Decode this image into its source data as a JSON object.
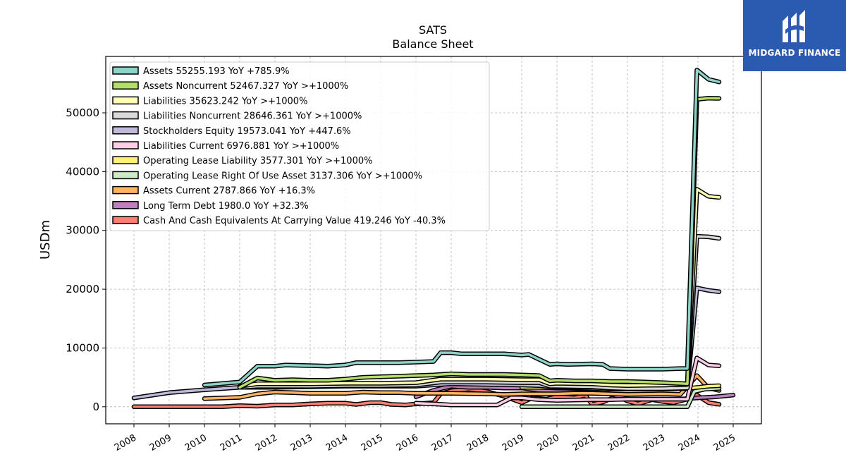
{
  "logo": {
    "text": "MIDGARD FINANCE",
    "color": "#2a5bb0"
  },
  "chart_data": {
    "type": "line",
    "title": "SATS",
    "subtitle": "Balance  Sheet",
    "ylabel": "USDm",
    "xlabel": "",
    "xlim": [
      2007.2,
      2025.8
    ],
    "ylim": [
      -2900,
      59600
    ],
    "yticks": [
      0,
      10000,
      20000,
      30000,
      40000,
      50000
    ],
    "xticks": [
      2008,
      2009,
      2010,
      2011,
      2012,
      2013,
      2014,
      2015,
      2016,
      2017,
      2018,
      2019,
      2020,
      2021,
      2022,
      2023,
      2024,
      2025
    ],
    "grid": true,
    "legend_position": "top-left",
    "series": [
      {
        "name": "Assets  55255.193 YoY +785.9%",
        "color": "#8dd3c7",
        "points": [
          [
            2010,
            3700
          ],
          [
            2011,
            4200
          ],
          [
            2011.5,
            6900
          ],
          [
            2012,
            6900
          ],
          [
            2012.3,
            7100
          ],
          [
            2013,
            7000
          ],
          [
            2013.5,
            6900
          ],
          [
            2014,
            7100
          ],
          [
            2014.3,
            7500
          ],
          [
            2015,
            7500
          ],
          [
            2015.5,
            7500
          ],
          [
            2016,
            7600
          ],
          [
            2016.5,
            7700
          ],
          [
            2016.7,
            9200
          ],
          [
            2017,
            9200
          ],
          [
            2017.3,
            9000
          ],
          [
            2018,
            9000
          ],
          [
            2018.5,
            9000
          ],
          [
            2019,
            8800
          ],
          [
            2019.2,
            8900
          ],
          [
            2019.8,
            7200
          ],
          [
            2020,
            7300
          ],
          [
            2020.3,
            7200
          ],
          [
            2021,
            7300
          ],
          [
            2021.3,
            7200
          ],
          [
            2021.5,
            6500
          ],
          [
            2022,
            6400
          ],
          [
            2022.5,
            6400
          ],
          [
            2023,
            6400
          ],
          [
            2023.5,
            6500
          ],
          [
            2023.7,
            6500
          ],
          [
            2023.97,
            57300
          ],
          [
            2024.3,
            55700
          ],
          [
            2024.6,
            55255
          ]
        ]
      },
      {
        "name": "Assets Noncurrent  52467.327 YoY >+1000%",
        "color": "#b3de69",
        "points": [
          [
            2011,
            3300
          ],
          [
            2011.5,
            4900
          ],
          [
            2012,
            4500
          ],
          [
            2012.5,
            4600
          ],
          [
            2013,
            4500
          ],
          [
            2013.5,
            4500
          ],
          [
            2014,
            4700
          ],
          [
            2014.5,
            5000
          ],
          [
            2015,
            5100
          ],
          [
            2015.5,
            5200
          ],
          [
            2016,
            5300
          ],
          [
            2016.5,
            5400
          ],
          [
            2017,
            5600
          ],
          [
            2017.5,
            5500
          ],
          [
            2018,
            5500
          ],
          [
            2018.5,
            5500
          ],
          [
            2019,
            5400
          ],
          [
            2019.5,
            5300
          ],
          [
            2019.8,
            4400
          ],
          [
            2020,
            4500
          ],
          [
            2020.5,
            4400
          ],
          [
            2021,
            4400
          ],
          [
            2021.5,
            4300
          ],
          [
            2022,
            4300
          ],
          [
            2022.5,
            4200
          ],
          [
            2023,
            4100
          ],
          [
            2023.7,
            3900
          ],
          [
            2023.97,
            52300
          ],
          [
            2024.3,
            52500
          ],
          [
            2024.6,
            52467
          ]
        ]
      },
      {
        "name": "Liabilities  35623.242 YoY >+1000%",
        "color": "#ffffb3",
        "points": [
          [
            2011,
            3500
          ],
          [
            2011.5,
            3900
          ],
          [
            2012,
            3900
          ],
          [
            2013,
            3900
          ],
          [
            2014,
            4000
          ],
          [
            2015,
            4000
          ],
          [
            2016,
            4100
          ],
          [
            2016.7,
            4700
          ],
          [
            2017,
            4700
          ],
          [
            2018,
            4700
          ],
          [
            2019,
            4600
          ],
          [
            2019.5,
            4600
          ],
          [
            2019.8,
            3900
          ],
          [
            2020,
            4000
          ],
          [
            2021,
            3900
          ],
          [
            2021.5,
            3700
          ],
          [
            2022,
            3600
          ],
          [
            2023,
            3700
          ],
          [
            2023.7,
            3800
          ],
          [
            2023.97,
            37000
          ],
          [
            2024.3,
            35800
          ],
          [
            2024.6,
            35623
          ]
        ]
      },
      {
        "name": "Liabilities Noncurrent  28646.361 YoY >+1000%",
        "color": "#d9d9d9",
        "points": [
          [
            2011,
            3300
          ],
          [
            2011.5,
            3500
          ],
          [
            2012,
            3500
          ],
          [
            2013,
            3500
          ],
          [
            2014,
            3600
          ],
          [
            2015,
            3600
          ],
          [
            2016,
            3700
          ],
          [
            2016.7,
            4200
          ],
          [
            2017,
            4200
          ],
          [
            2018,
            4200
          ],
          [
            2019,
            4100
          ],
          [
            2019.5,
            4100
          ],
          [
            2019.8,
            3500
          ],
          [
            2020,
            3500
          ],
          [
            2021,
            3400
          ],
          [
            2021.5,
            3200
          ],
          [
            2022,
            3100
          ],
          [
            2023,
            3100
          ],
          [
            2023.7,
            3200
          ],
          [
            2023.97,
            29000
          ],
          [
            2024.3,
            28900
          ],
          [
            2024.6,
            28646
          ]
        ]
      },
      {
        "name": "Stockholders Equity  19573.041 YoY +447.6%",
        "color": "#bebada",
        "points": [
          [
            2008,
            1500
          ],
          [
            2009,
            2400
          ],
          [
            2010,
            2900
          ],
          [
            2011,
            3300
          ],
          [
            2012,
            3300
          ],
          [
            2013,
            3400
          ],
          [
            2014,
            3500
          ],
          [
            2015,
            3500
          ],
          [
            2016,
            3500
          ],
          [
            2016.7,
            3800
          ],
          [
            2017,
            3900
          ],
          [
            2018,
            3800
          ],
          [
            2019,
            3700
          ],
          [
            2019.5,
            3600
          ],
          [
            2020,
            3300
          ],
          [
            2021,
            3300
          ],
          [
            2021.5,
            3200
          ],
          [
            2022,
            3200
          ],
          [
            2023,
            3300
          ],
          [
            2023.7,
            3300
          ],
          [
            2023.97,
            20200
          ],
          [
            2024.3,
            19800
          ],
          [
            2024.6,
            19573
          ]
        ]
      },
      {
        "name": "Liabilities Current  6976.881 YoY >+1000%",
        "color": "#fccde5",
        "points": [
          [
            2016,
            600
          ],
          [
            2016.5,
            500
          ],
          [
            2017,
            300
          ],
          [
            2017.5,
            300
          ],
          [
            2018,
            300
          ],
          [
            2018.3,
            300
          ],
          [
            2018.7,
            1500
          ],
          [
            2019,
            1500
          ],
          [
            2019.5,
            1200
          ],
          [
            2020,
            1100
          ],
          [
            2021,
            1200
          ],
          [
            2021.5,
            1200
          ],
          [
            2022,
            1300
          ],
          [
            2023,
            1300
          ],
          [
            2023.7,
            1300
          ],
          [
            2023.97,
            8300
          ],
          [
            2024.3,
            7100
          ],
          [
            2024.6,
            6977
          ]
        ]
      },
      {
        "name": "Operating Lease Liability  3577.301 YoY >+1000%",
        "color": "#fff176",
        "points": [
          [
            2019,
            3300
          ],
          [
            2019.5,
            3300
          ],
          [
            2020,
            3200
          ],
          [
            2021,
            3100
          ],
          [
            2021.5,
            3000
          ],
          [
            2022,
            3000
          ],
          [
            2023,
            3000
          ],
          [
            2023.7,
            3100
          ],
          [
            2024,
            3300
          ],
          [
            2024.3,
            3500
          ],
          [
            2024.6,
            3577
          ]
        ]
      },
      {
        "name": "Operating Lease Right Of Use Asset  3137.306 YoY >+1000%",
        "color": "#ccebc5",
        "points": [
          [
            2019,
            0
          ],
          [
            2019.5,
            0
          ],
          [
            2020,
            0
          ],
          [
            2021,
            0
          ],
          [
            2021.5,
            0
          ],
          [
            2022,
            0
          ],
          [
            2023,
            0
          ],
          [
            2023.7,
            0
          ],
          [
            2023.9,
            2600
          ],
          [
            2024.2,
            3000
          ],
          [
            2024.6,
            3137
          ]
        ]
      },
      {
        "name": "Assets Current  2787.866 YoY +16.3%",
        "color": "#fdb462",
        "points": [
          [
            2010,
            1400
          ],
          [
            2011,
            1600
          ],
          [
            2011.5,
            2200
          ],
          [
            2012,
            2500
          ],
          [
            2012.5,
            2400
          ],
          [
            2013,
            2300
          ],
          [
            2014,
            2300
          ],
          [
            2014.5,
            2500
          ],
          [
            2015,
            2400
          ],
          [
            2015.5,
            2400
          ],
          [
            2016,
            2300
          ],
          [
            2016.5,
            2300
          ],
          [
            2017,
            2300
          ],
          [
            2018,
            2200
          ],
          [
            2018.5,
            2100
          ],
          [
            2019,
            2200
          ],
          [
            2020,
            2200
          ],
          [
            2020.5,
            2300
          ],
          [
            2021,
            2300
          ],
          [
            2021.5,
            2200
          ],
          [
            2022,
            2100
          ],
          [
            2023,
            2200
          ],
          [
            2023.5,
            2100
          ],
          [
            2023.97,
            5300
          ],
          [
            2024.3,
            3200
          ],
          [
            2024.6,
            2788
          ]
        ]
      },
      {
        "name": "Long Term Debt  1980.0 YoY +32.3%",
        "color": "#bc80bd",
        "points": [
          [
            2016,
            1700
          ],
          [
            2016.5,
            2800
          ],
          [
            2017,
            3500
          ],
          [
            2017.5,
            3300
          ],
          [
            2018,
            3300
          ],
          [
            2018.5,
            3200
          ],
          [
            2019,
            3200
          ],
          [
            2019.5,
            2800
          ],
          [
            2020,
            2700
          ],
          [
            2020.5,
            2500
          ],
          [
            2021,
            2300
          ],
          [
            2021.5,
            2200
          ],
          [
            2022,
            1300
          ],
          [
            2023,
            1300
          ],
          [
            2023.5,
            1300
          ],
          [
            2023.97,
            1500
          ],
          [
            2024.5,
            1700
          ],
          [
            2025,
            1980
          ]
        ]
      },
      {
        "name": "Cash And Cash Equivalents At Carrying Value  419.246 YoY -40.3%",
        "color": "#fb8072",
        "points": [
          [
            2008,
            0
          ],
          [
            2009,
            0
          ],
          [
            2010,
            0
          ],
          [
            2010.5,
            0
          ],
          [
            2011,
            200
          ],
          [
            2011.5,
            100
          ],
          [
            2012,
            300
          ],
          [
            2012.5,
            300
          ],
          [
            2013,
            500
          ],
          [
            2013.5,
            600
          ],
          [
            2014,
            600
          ],
          [
            2014.3,
            400
          ],
          [
            2014.7,
            700
          ],
          [
            2015,
            700
          ],
          [
            2015.3,
            400
          ],
          [
            2015.7,
            300
          ],
          [
            2016,
            500
          ],
          [
            2016.3,
            600
          ],
          [
            2016.5,
            700
          ],
          [
            2016.7,
            2200
          ],
          [
            2017,
            2700
          ],
          [
            2017.5,
            3000
          ],
          [
            2018,
            2600
          ],
          [
            2018.5,
            1800
          ],
          [
            2019,
            700
          ],
          [
            2019.3,
            1500
          ],
          [
            2019.7,
            1300
          ],
          [
            2020,
            1700
          ],
          [
            2020.5,
            1500
          ],
          [
            2020.8,
            2000
          ],
          [
            2021,
            400
          ],
          [
            2021.3,
            800
          ],
          [
            2021.7,
            1800
          ],
          [
            2022,
            1000
          ],
          [
            2022.3,
            500
          ],
          [
            2022.7,
            1200
          ],
          [
            2023,
            900
          ],
          [
            2023.3,
            700
          ],
          [
            2023.7,
            1300
          ],
          [
            2023.97,
            2000
          ],
          [
            2024.3,
            700
          ],
          [
            2024.6,
            419
          ]
        ]
      }
    ]
  }
}
